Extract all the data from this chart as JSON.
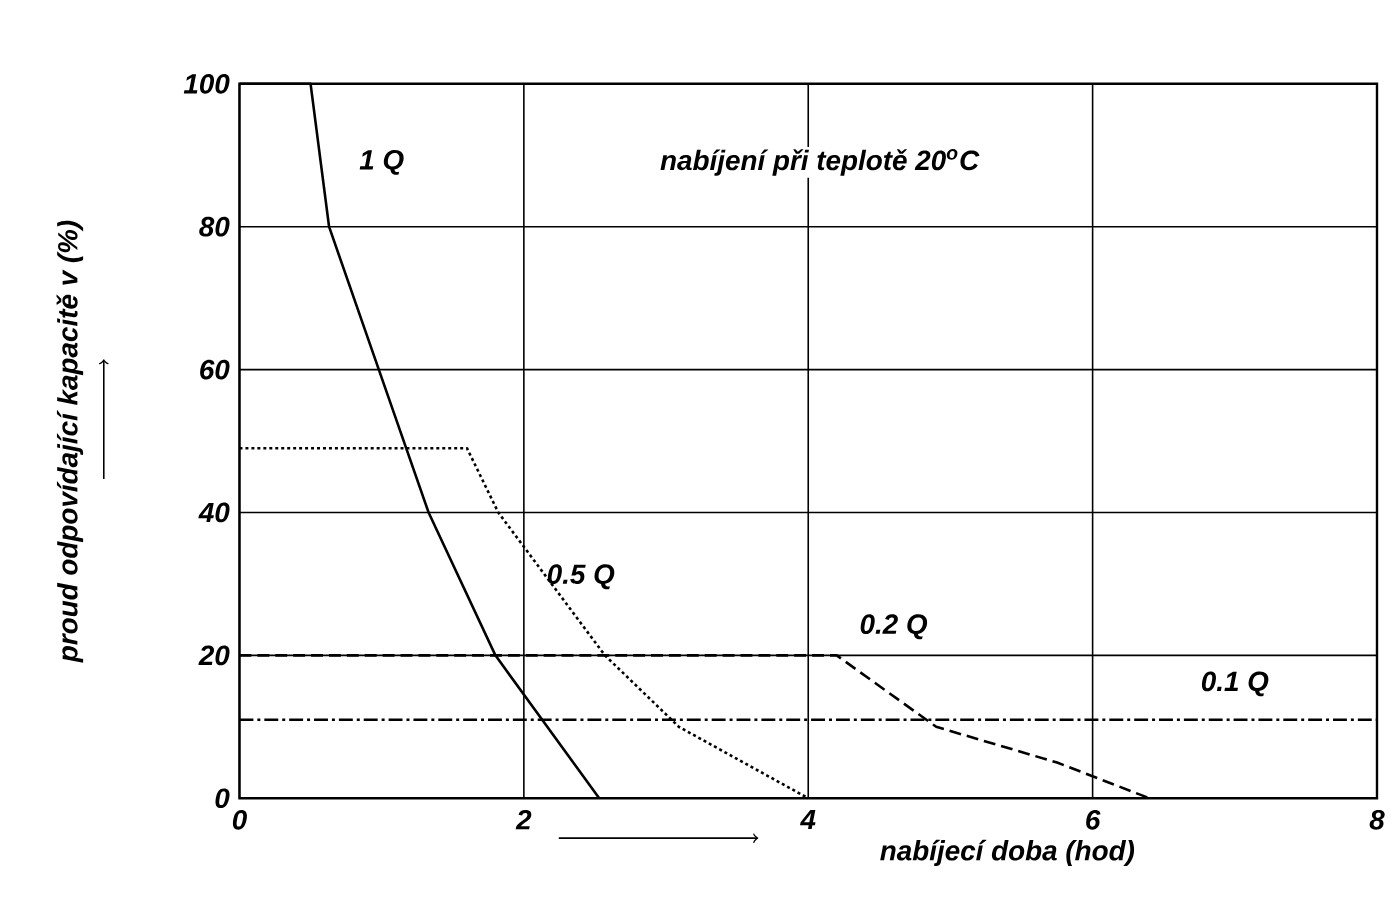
{
  "chart_data": {
    "type": "line",
    "xlabel": "nabíjecí doba (hod)",
    "ylabel": "proud odpovídající kapacitě v (%)",
    "annotations": [
      "nabíjení při teplotě 20$^{o}$C"
    ],
    "series": [
      {
        "name": "1 Q",
        "color": "#000000",
        "line_style": "solid",
        "x": [
          0,
          0.5,
          0.63,
          0.98,
          1.33,
          1.8,
          2.53
        ],
        "values": [
          100,
          100,
          80,
          60,
          40,
          20,
          0
        ]
      },
      {
        "name": "0.5 Q",
        "color": "#000000",
        "line_style": "dotted",
        "x": [
          0,
          1.6,
          1.82,
          2.57,
          3.09,
          4.0
        ],
        "values": [
          49,
          49,
          40,
          20,
          10,
          0
        ]
      },
      {
        "name": "0.2 Q",
        "color": "#000000",
        "line_style": "dashed",
        "x": [
          0,
          4.2,
          4.9,
          5.75,
          6.4
        ],
        "values": [
          20,
          20,
          10,
          5,
          0
        ]
      },
      {
        "name": "0.1 Q",
        "color": "#000000",
        "line_style": "dashdot",
        "x": [
          0,
          8
        ],
        "values": [
          11,
          11
        ]
      }
    ],
    "xlim": [
      0,
      8
    ],
    "ylim": [
      0,
      100
    ],
    "xticks": [
      0,
      2,
      4,
      6,
      8
    ],
    "yticks": [
      0,
      20,
      40,
      60,
      80,
      100
    ],
    "grid": true,
    "marker": "none"
  }
}
